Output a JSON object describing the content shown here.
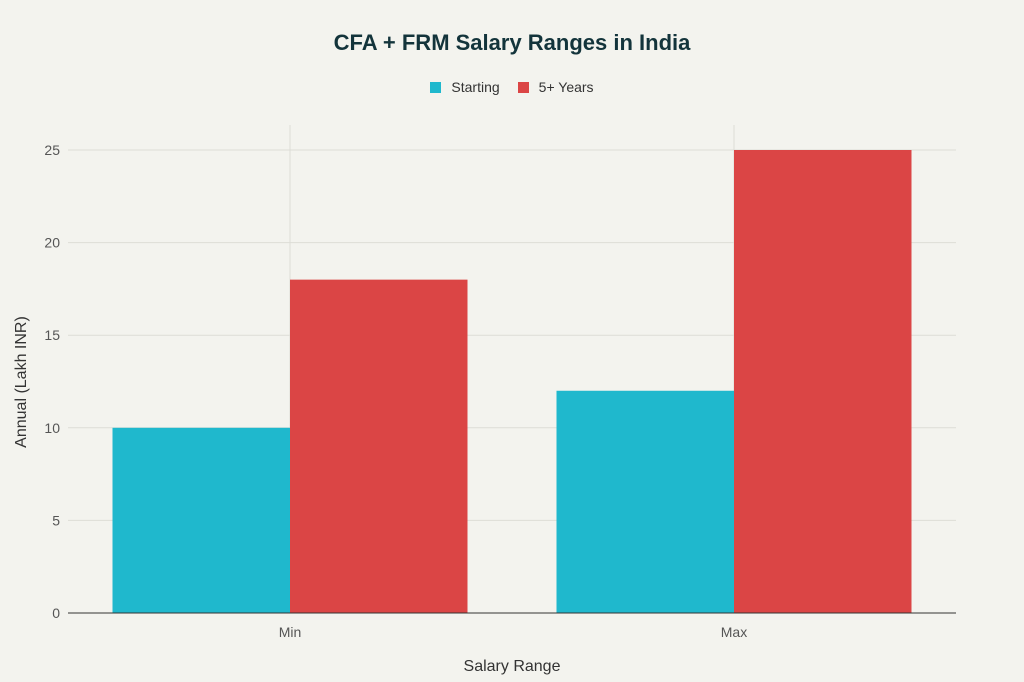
{
  "chart_data": {
    "type": "bar",
    "title": "CFA + FRM Salary Ranges in India",
    "xlabel": "Salary Range",
    "ylabel": "Annual (Lakh INR)",
    "categories": [
      "Min",
      "Max"
    ],
    "series": [
      {
        "name": "Starting",
        "values": [
          10,
          12
        ],
        "color": "#1FB8CD"
      },
      {
        "name": "5+ Years",
        "values": [
          18,
          25
        ],
        "color": "#DB4545"
      }
    ],
    "ylim": [
      0,
      25
    ],
    "yticks": [
      0,
      5,
      10,
      15,
      20,
      25
    ],
    "grid": true,
    "legend": "top-center"
  }
}
